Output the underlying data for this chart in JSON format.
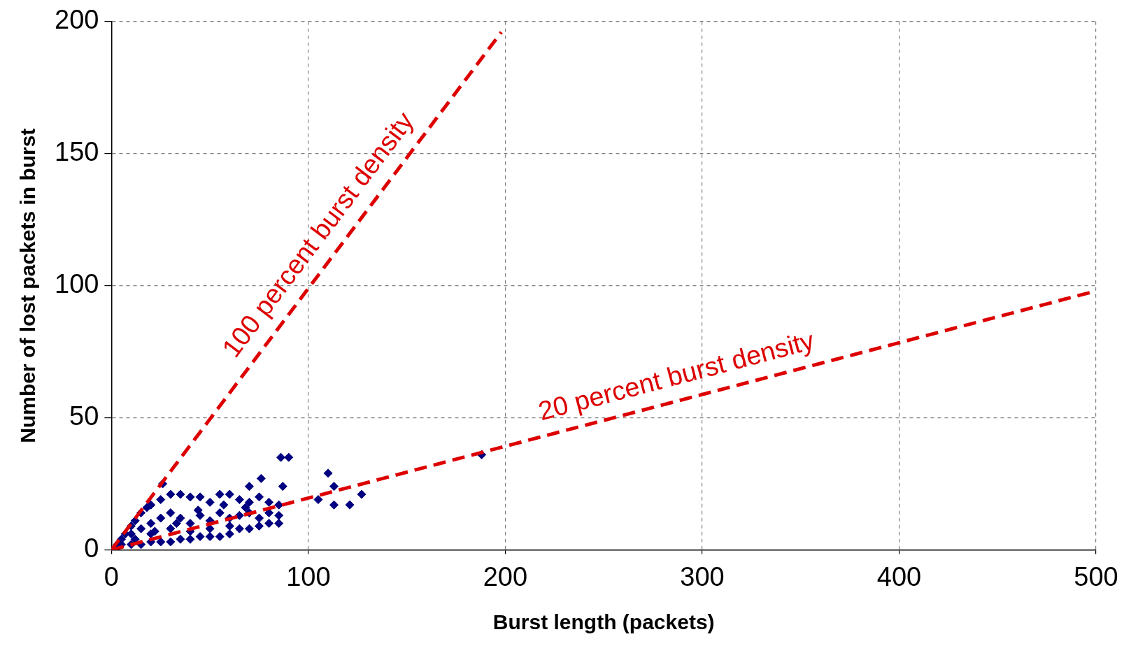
{
  "chart_data": {
    "type": "scatter",
    "xlabel": "Burst length (packets)",
    "ylabel": "Number of lost packets in burst",
    "xlim": [
      0,
      500
    ],
    "xticks": [
      0,
      100,
      200,
      300,
      400,
      500
    ],
    "ylim": [
      0,
      200
    ],
    "yticks": [
      0,
      50,
      100,
      150,
      200
    ],
    "grid": true,
    "legend": false,
    "series": [
      {
        "color": "#000080",
        "marker": "diamond",
        "x": [
          3,
          5,
          7,
          10,
          12,
          15,
          18,
          20,
          25,
          30,
          35,
          40,
          45,
          50,
          55,
          60,
          65,
          70,
          75,
          80,
          85,
          5,
          10,
          15,
          20,
          25,
          30,
          35,
          40,
          45,
          50,
          55,
          60,
          65,
          70,
          75,
          80,
          85,
          10,
          15,
          20,
          25,
          30,
          35,
          40,
          45,
          50,
          55,
          60,
          65,
          70,
          75,
          80,
          85,
          20,
          30,
          40,
          50,
          60,
          12,
          22,
          33,
          44,
          57,
          68,
          86,
          90,
          110,
          113,
          127,
          113,
          121,
          105,
          87,
          76,
          70,
          26,
          188
        ],
        "values": [
          2,
          4,
          6,
          9,
          11,
          14,
          16,
          17,
          19,
          21,
          21,
          20,
          20,
          18,
          21,
          21,
          19,
          18,
          20,
          18,
          17,
          2,
          2,
          2,
          3,
          3,
          3,
          4,
          4,
          5,
          5,
          5,
          6,
          8,
          8,
          9,
          10,
          10,
          6,
          8,
          10,
          12,
          14,
          12,
          10,
          13,
          11,
          14,
          12,
          13,
          14,
          12,
          14,
          13,
          6,
          8,
          7,
          8,
          9,
          4,
          7,
          10,
          15,
          17,
          16,
          35,
          35,
          29,
          24,
          21,
          17,
          17,
          19,
          24,
          27,
          24,
          25,
          36
        ]
      },
      {
        "type": "line",
        "name": "100 percent burst density",
        "color": "#dd0000",
        "marker": "none",
        "line_style": "dashed",
        "x": [
          0,
          198
        ],
        "values": [
          0,
          196
        ]
      },
      {
        "type": "line",
        "name": "20 percent burst density",
        "color": "#dd0000",
        "marker": "none",
        "line_style": "dashed",
        "x": [
          0,
          500
        ],
        "values": [
          0,
          98
        ]
      }
    ]
  }
}
